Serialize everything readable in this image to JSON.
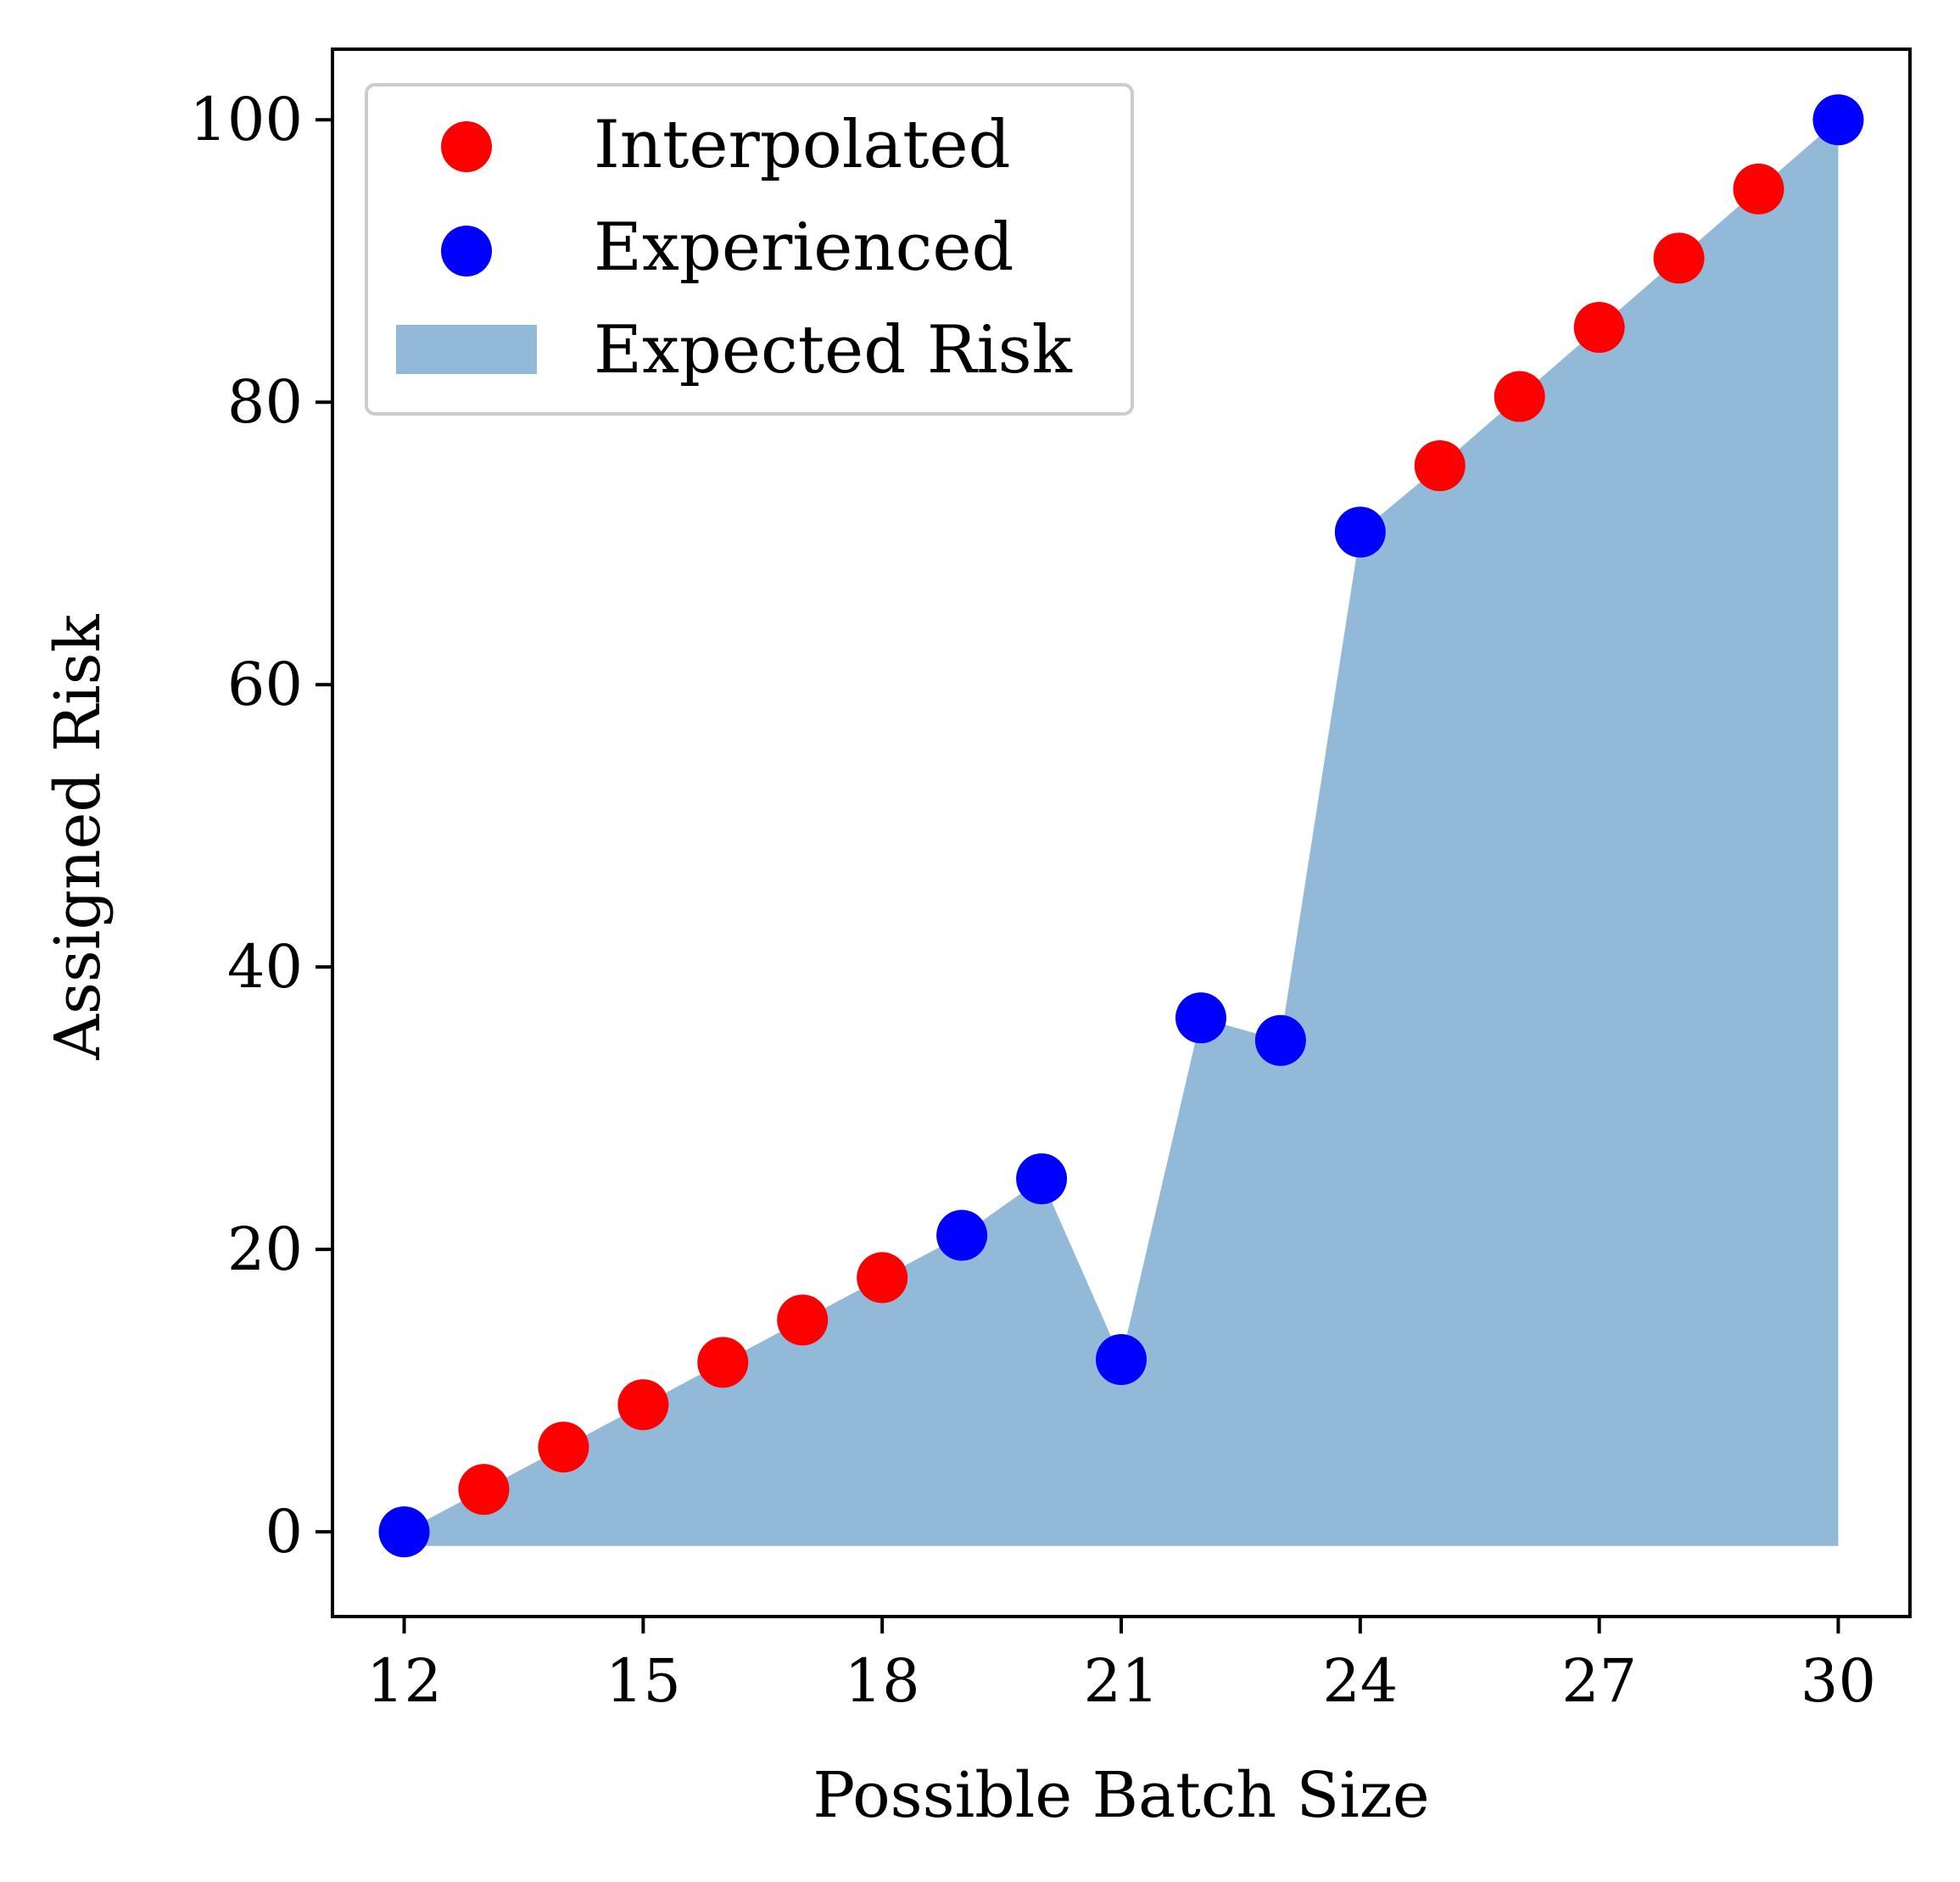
{
  "chart_data": {
    "type": "scatter",
    "xlabel": "Possible Batch Size",
    "ylabel": "Assigned Risk",
    "xlim": [
      11.1,
      30.9
    ],
    "ylim": [
      -6,
      105
    ],
    "x_ticks": [
      12,
      15,
      18,
      21,
      24,
      27,
      30
    ],
    "y_ticks": [
      0,
      20,
      40,
      60,
      80,
      100
    ],
    "grid": false,
    "legend_position": "top-left",
    "colors": {
      "interpolated": "#ff0000",
      "experienced": "#0000ff",
      "area": "#5b95c5"
    },
    "series": [
      {
        "name": "Interpolated",
        "kind": "scatter",
        "x": [
          13,
          14,
          15,
          16,
          17,
          18,
          25,
          26,
          27,
          28,
          29
        ],
        "y": [
          3,
          6,
          9,
          12,
          15,
          18,
          75.5,
          80.4,
          85.3,
          90.2,
          95.1
        ]
      },
      {
        "name": "Experienced",
        "kind": "scatter",
        "x": [
          12,
          19,
          20,
          21,
          22,
          23,
          24,
          30
        ],
        "y": [
          0,
          21,
          25,
          12.2,
          36.4,
          34.8,
          70.8,
          100
        ]
      },
      {
        "name": "Expected Risk",
        "kind": "area",
        "x": [
          12,
          13,
          14,
          15,
          16,
          17,
          18,
          19,
          20,
          21,
          22,
          23,
          24,
          25,
          26,
          27,
          28,
          29,
          30
        ],
        "y": [
          0,
          3,
          6,
          9,
          12,
          15,
          18,
          21,
          25,
          12.2,
          36.4,
          34.8,
          70.8,
          75.5,
          80.4,
          85.3,
          90.2,
          95.1,
          100
        ],
        "baseline": -1
      }
    ]
  }
}
